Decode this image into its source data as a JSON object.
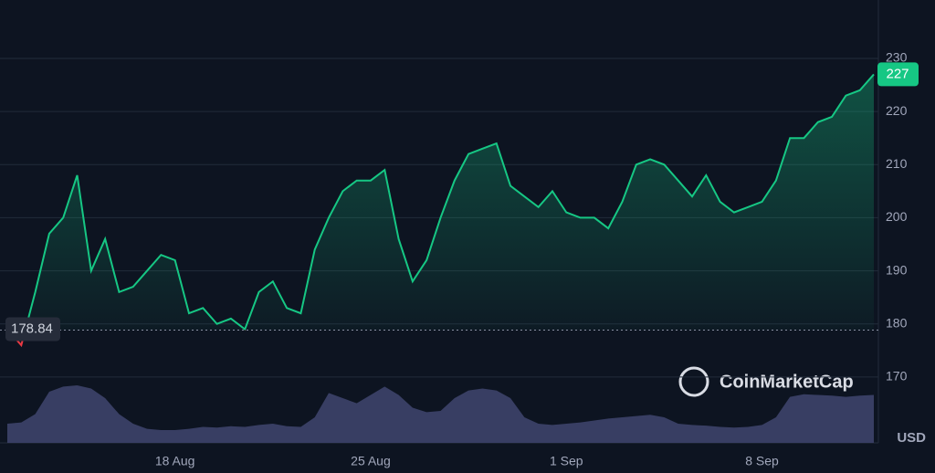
{
  "chart_data": {
    "type": "line",
    "categories": [
      null,
      null,
      null,
      null,
      null,
      null,
      null,
      null,
      null,
      null,
      null,
      null,
      "18 Aug",
      null,
      null,
      null,
      null,
      null,
      null,
      null,
      null,
      null,
      null,
      null,
      null,
      null,
      "25 Aug",
      null,
      null,
      null,
      null,
      null,
      null,
      null,
      null,
      null,
      null,
      null,
      null,
      null,
      "1 Sep",
      null,
      null,
      null,
      null,
      null,
      null,
      null,
      null,
      null,
      null,
      null,
      null,
      null,
      "8 Sep",
      null,
      null,
      null,
      null,
      null,
      null,
      null,
      null
    ],
    "values": [
      179,
      176,
      186,
      197,
      200,
      208,
      190,
      196,
      186,
      187,
      190,
      193,
      192,
      182,
      183,
      180,
      181,
      179,
      186,
      188,
      183,
      182,
      194,
      200,
      205,
      207,
      207,
      209,
      196,
      188,
      192,
      200,
      207,
      212,
      213,
      214,
      206,
      204,
      202,
      205,
      201,
      200,
      200,
      198,
      203,
      210,
      211,
      210,
      207,
      204,
      208,
      203,
      201,
      202,
      203,
      207,
      215,
      215,
      218,
      219,
      223,
      224,
      227
    ],
    "volume": [
      30,
      32,
      45,
      80,
      88,
      90,
      85,
      70,
      45,
      30,
      22,
      20,
      20,
      22,
      25,
      24,
      26,
      25,
      28,
      30,
      26,
      25,
      40,
      78,
      70,
      62,
      75,
      88,
      75,
      55,
      48,
      50,
      70,
      82,
      85,
      82,
      70,
      40,
      30,
      28,
      30,
      32,
      35,
      38,
      40,
      42,
      44,
      40,
      30,
      28,
      27,
      25,
      24,
      25,
      28,
      40,
      72,
      76,
      75,
      74,
      72,
      74,
      75
    ],
    "color": "#16c784",
    "down_color": "#ea3943",
    "volume_color": "#383e63",
    "reference": 178.84,
    "ylim": [
      157.6,
      241
    ],
    "yticks": [
      170,
      180,
      190,
      200,
      210,
      220,
      230
    ],
    "grid": true,
    "currency": "USD",
    "watermark": "CoinMarketCap"
  }
}
